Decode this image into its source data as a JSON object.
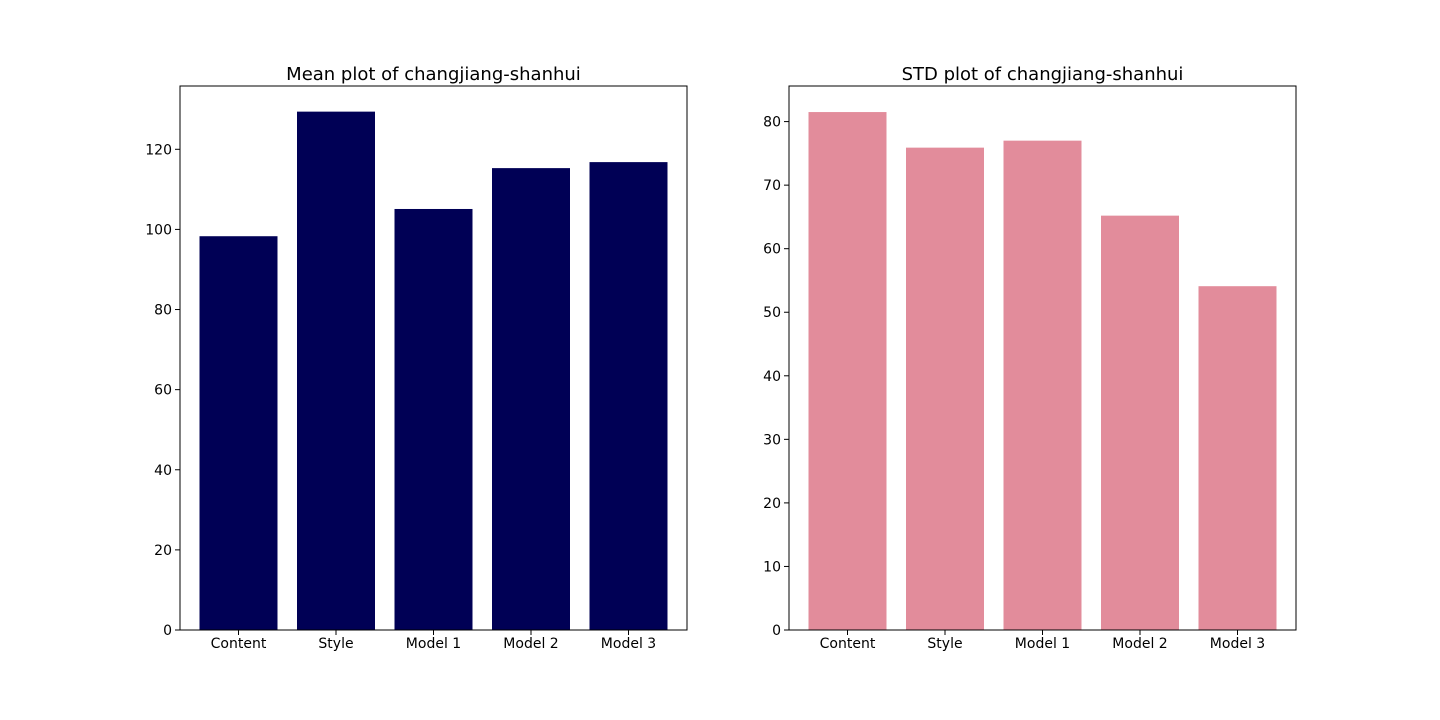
{
  "chart_data": [
    {
      "type": "bar",
      "title": "Mean plot of changjiang-shanhui",
      "xlabel": "",
      "ylabel": "",
      "categories": [
        "Content",
        "Style",
        "Model 1",
        "Model 2",
        "Model 3"
      ],
      "values": [
        98.3,
        129.4,
        105.1,
        115.3,
        116.8
      ],
      "ylim": [
        0,
        135.8
      ],
      "yticks": [
        0,
        20,
        40,
        60,
        80,
        100,
        120
      ],
      "color": "#000055",
      "grid": false
    },
    {
      "type": "bar",
      "title": "STD plot of changjiang-shanhui",
      "xlabel": "",
      "ylabel": "",
      "categories": [
        "Content",
        "Style",
        "Model 1",
        "Model 2",
        "Model 3"
      ],
      "values": [
        81.5,
        75.9,
        77.0,
        65.2,
        54.1
      ],
      "ylim": [
        0,
        85.6
      ],
      "yticks": [
        0,
        10,
        20,
        30,
        40,
        50,
        60,
        70,
        80
      ],
      "color": "#e28c9b",
      "grid": false
    }
  ]
}
